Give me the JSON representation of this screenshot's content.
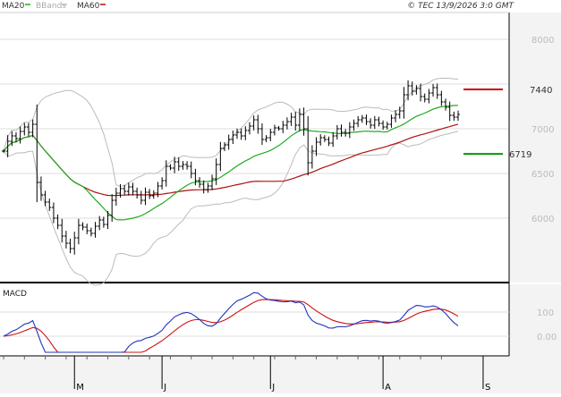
{
  "chart_data": [
    {
      "type": "line",
      "subtype": "ohlc-bars-with-overlays",
      "legend": [
        {
          "name": "MA20",
          "color": "#22aa22"
        },
        {
          "name": "BBands",
          "color": "#bbbbbb"
        },
        {
          "name": "MA60",
          "color": "#aa1111"
        }
      ],
      "copyright": "© TEC 13/9/2026 3:0 GMT",
      "y_axis": {
        "min": 5300,
        "max": 8300,
        "ticks": [
          {
            "value": 8000,
            "label": "8000"
          },
          {
            "value": 7500,
            "label": ""
          },
          {
            "value": 7000,
            "label": "7000"
          },
          {
            "value": 6500,
            "label": "6500"
          },
          {
            "value": 6000,
            "label": "6000"
          }
        ]
      },
      "x_axis": {
        "months": [
          "M",
          "J",
          "J",
          "A",
          "S"
        ],
        "month_start_index": [
          17,
          38,
          64,
          91,
          115
        ]
      },
      "grid": true,
      "levels": [
        {
          "label": "7440",
          "value": 7440,
          "color": "#cc0000"
        },
        {
          "label": "6719",
          "value": 6719,
          "color": "#009900"
        }
      ],
      "closes": [
        6750,
        6860,
        6920,
        6890,
        6970,
        7020,
        6960,
        7050,
        6400,
        6260,
        6180,
        6120,
        6000,
        5920,
        5800,
        5720,
        5660,
        5780,
        5920,
        5900,
        5860,
        5830,
        5910,
        5980,
        5930,
        6030,
        6200,
        6280,
        6330,
        6300,
        6350,
        6300,
        6260,
        6200,
        6290,
        6250,
        6280,
        6360,
        6420,
        6580,
        6560,
        6630,
        6580,
        6600,
        6580,
        6500,
        6420,
        6380,
        6320,
        6360,
        6440,
        6600,
        6780,
        6820,
        6880,
        6930,
        6960,
        6920,
        6980,
        7030,
        7100,
        7000,
        6880,
        6900,
        6960,
        7010,
        7000,
        7040,
        7080,
        7130,
        7040,
        7160,
        7000,
        6620,
        6750,
        6850,
        6900,
        6880,
        6840,
        6920,
        7000,
        6960,
        6950,
        7020,
        7060,
        7100,
        7120,
        7080,
        7040,
        7100,
        7060,
        7020,
        7050,
        7120,
        7160,
        7200,
        7380,
        7480,
        7420,
        7450,
        7360,
        7330,
        7400,
        7460,
        7380,
        7300,
        7240,
        7150,
        7130,
        7160
      ]
    },
    {
      "type": "line",
      "title": "MACD",
      "y_axis": {
        "ticks": [
          {
            "value": 100,
            "label": "100"
          },
          {
            "value": 0,
            "label": "0.00"
          }
        ]
      },
      "series_colors": {
        "macd": "#2233bb",
        "signal": "#cc1111"
      }
    }
  ]
}
